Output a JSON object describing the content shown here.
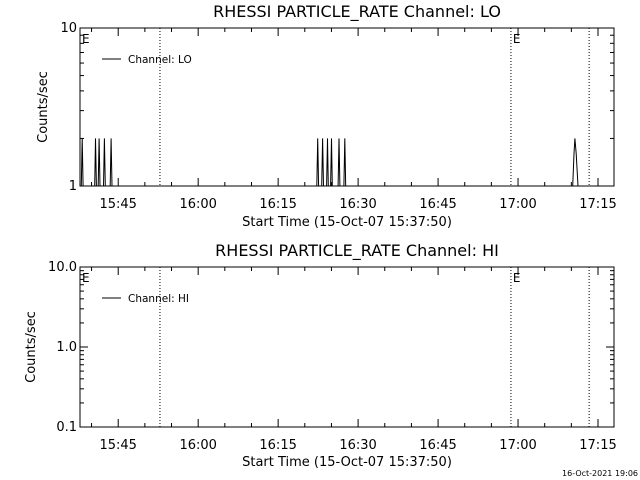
{
  "chart_data": [
    {
      "type": "line",
      "title": "RHESSI PARTICLE_RATE Channel: LO",
      "xlabel": "Start Time (15-Oct-07 15:37:50)",
      "ylabel": "Counts/sec",
      "y_scale": "log",
      "ylim": [
        1,
        10
      ],
      "y_ticks": [
        "1",
        "10"
      ],
      "xlim": [
        "15:37:50",
        "17:18:00"
      ],
      "x_ticks": [
        "15:45",
        "16:00",
        "16:15",
        "16:30",
        "16:45",
        "17:00",
        "17:15"
      ],
      "legend": {
        "position": "top-left",
        "entries": [
          "Channel: LO"
        ]
      },
      "grid": false,
      "vertical_markers": [
        {
          "time": "15:52:50",
          "label": ""
        },
        {
          "time": "16:58:40",
          "label": "E"
        },
        {
          "time": "17:13:20",
          "label": ""
        },
        {
          "time": "15:37:50",
          "label": "E"
        }
      ],
      "series": [
        {
          "name": "Channel: LO",
          "x": [
            "15:37:50",
            "15:38:05",
            "15:38:15",
            "15:38:25",
            "15:38:40",
            "15:40:35",
            "15:40:45",
            "15:40:55",
            "15:41:15",
            "15:41:25",
            "15:41:35",
            "15:42:15",
            "15:42:25",
            "15:42:35",
            "15:43:30",
            "15:43:40",
            "15:43:50",
            "15:44:10",
            "16:22:15",
            "16:22:25",
            "16:22:35",
            "16:23:10",
            "16:23:20",
            "16:23:30",
            "16:24:05",
            "16:24:15",
            "16:24:25",
            "16:24:50",
            "16:25:00",
            "16:25:10",
            "16:26:15",
            "16:26:25",
            "16:26:35",
            "16:27:20",
            "16:27:30",
            "16:27:40",
            "16:28:10",
            "17:10:15",
            "17:10:30",
            "17:10:40",
            "17:10:55",
            "17:11:15"
          ],
          "values": [
            1,
            1,
            2,
            1,
            1,
            1,
            2,
            1,
            1,
            2,
            1,
            1,
            2,
            1,
            1,
            2,
            1,
            1,
            1,
            2,
            1,
            1,
            2,
            1,
            1,
            2,
            1,
            1,
            2,
            1,
            1,
            2,
            1,
            1,
            2,
            1,
            1,
            1,
            1.6,
            2,
            1.6,
            1
          ]
        }
      ]
    },
    {
      "type": "line",
      "title": "RHESSI PARTICLE_RATE Channel: HI",
      "xlabel": "Start Time (15-Oct-07 15:37:50)",
      "ylabel": "Counts/sec",
      "y_scale": "log",
      "ylim": [
        0.1,
        10
      ],
      "y_ticks": [
        "0.1",
        "1.0",
        "10.0"
      ],
      "xlim": [
        "15:37:50",
        "17:18:00"
      ],
      "x_ticks": [
        "15:45",
        "16:00",
        "16:15",
        "16:30",
        "16:45",
        "17:00",
        "17:15"
      ],
      "legend": {
        "position": "top-left",
        "entries": [
          "Channel: HI"
        ]
      },
      "grid": false,
      "vertical_markers": [
        {
          "time": "15:52:50",
          "label": ""
        },
        {
          "time": "16:58:40",
          "label": "E"
        },
        {
          "time": "17:13:20",
          "label": ""
        },
        {
          "time": "15:37:50",
          "label": "E"
        }
      ],
      "series": [
        {
          "name": "Channel: HI",
          "x": [],
          "values": []
        }
      ]
    }
  ],
  "footer": {
    "timestamp": "16-Oct-2021 19:06"
  }
}
